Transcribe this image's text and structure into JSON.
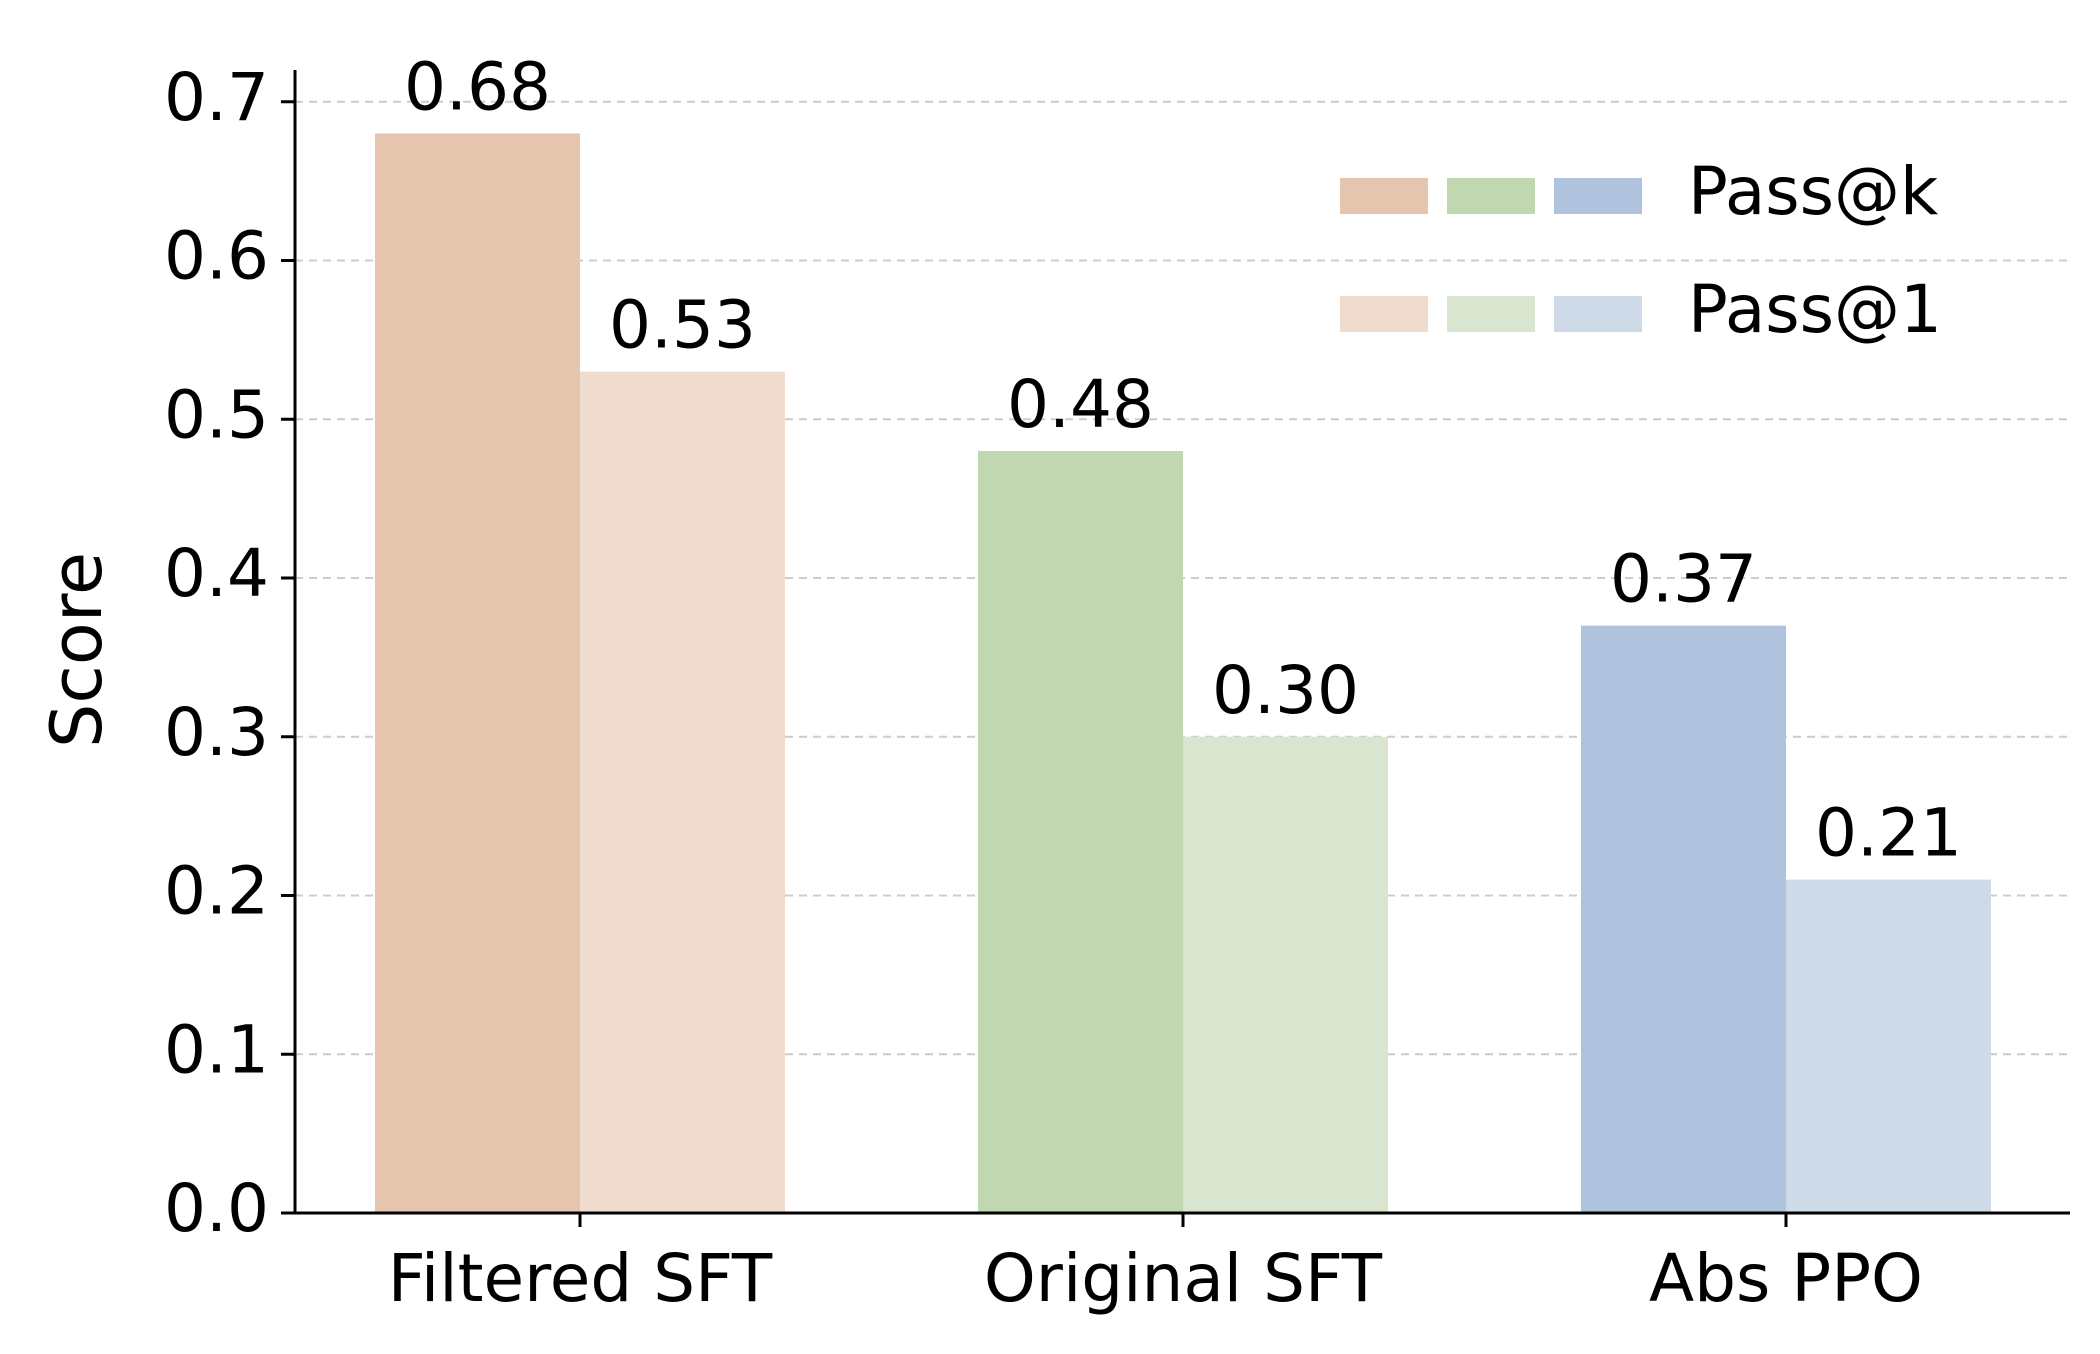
{
  "chart_data": {
    "type": "bar",
    "categories": [
      "Filtered SFT",
      "Original SFT",
      "Abs PPO"
    ],
    "series": [
      {
        "name": "Pass@k",
        "values": [
          0.68,
          0.48,
          0.37
        ],
        "value_labels": [
          "0.68",
          "0.48",
          "0.37"
        ],
        "colors": [
          "#e5c5ad",
          "#c1d7b0",
          "#afc2de"
        ]
      },
      {
        "name": "Pass@1",
        "values": [
          0.53,
          0.3,
          0.21
        ],
        "value_labels": [
          "0.53",
          "0.30",
          "0.21"
        ],
        "colors": [
          "#efdccf",
          "#d9e5cf",
          "#cfdae9"
        ]
      }
    ],
    "title": "",
    "xlabel": "",
    "ylabel": "Score",
    "ylim": [
      0,
      0.72
    ],
    "yticks": [
      0.0,
      0.1,
      0.2,
      0.3,
      0.4,
      0.5,
      0.6,
      0.7
    ],
    "ytick_labels": [
      "0.0",
      "0.1",
      "0.2",
      "0.3",
      "0.4",
      "0.5",
      "0.6",
      "0.7"
    ],
    "grid": true,
    "legend_position": "top-right"
  }
}
